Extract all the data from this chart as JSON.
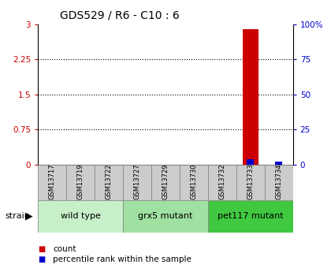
{
  "title": "GDS529 / R6 - C10 : 6",
  "samples": [
    "GSM13717",
    "GSM13719",
    "GSM13722",
    "GSM13727",
    "GSM13729",
    "GSM13730",
    "GSM13732",
    "GSM13733",
    "GSM13734"
  ],
  "count_values": [
    0,
    0,
    0,
    0,
    0,
    0,
    0,
    2.9,
    0
  ],
  "percentile_values": [
    0,
    0,
    0,
    0,
    0,
    0,
    0,
    4,
    2
  ],
  "groups": [
    {
      "label": "wild type",
      "indices": [
        0,
        1,
        2
      ],
      "color": "#c8f0c8"
    },
    {
      "label": "grx5 mutant",
      "indices": [
        3,
        4,
        5
      ],
      "color": "#a0e0a0"
    },
    {
      "label": "pet117 mutant",
      "indices": [
        6,
        7,
        8
      ],
      "color": "#40c840"
    }
  ],
  "ylim_left": [
    0,
    3
  ],
  "ylim_right": [
    0,
    100
  ],
  "yticks_left": [
    0,
    0.75,
    1.5,
    2.25,
    3
  ],
  "yticks_right": [
    0,
    25,
    50,
    75,
    100
  ],
  "count_color": "#cc0000",
  "percentile_color": "#0000cc",
  "count_bar_width": 0.55,
  "pct_bar_width": 0.25,
  "sample_box_color": "#cccccc",
  "title_fontsize": 10,
  "tick_fontsize": 7.5,
  "label_fontsize": 8
}
